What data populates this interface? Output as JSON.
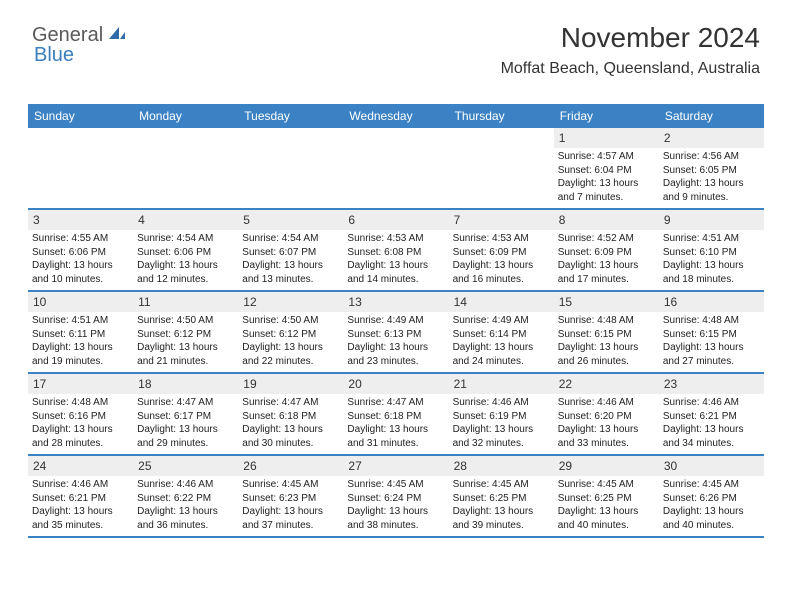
{
  "logo": {
    "text1": "General",
    "text2": "Blue"
  },
  "title": "November 2024",
  "location": "Moffat Beach, Queensland, Australia",
  "colors": {
    "header_bg": "#3b82c4",
    "header_text": "#ffffff",
    "daynum_bg": "#eeeeee",
    "border": "#3b82c4",
    "logo_gray": "#5a5a5a",
    "logo_blue": "#3b7fbf"
  },
  "day_headers": [
    "Sunday",
    "Monday",
    "Tuesday",
    "Wednesday",
    "Thursday",
    "Friday",
    "Saturday"
  ],
  "weeks": [
    [
      null,
      null,
      null,
      null,
      null,
      {
        "n": "1",
        "sr": "4:57 AM",
        "ss": "6:04 PM",
        "dh": 13,
        "dm": 7
      },
      {
        "n": "2",
        "sr": "4:56 AM",
        "ss": "6:05 PM",
        "dh": 13,
        "dm": 9
      }
    ],
    [
      {
        "n": "3",
        "sr": "4:55 AM",
        "ss": "6:06 PM",
        "dh": 13,
        "dm": 10
      },
      {
        "n": "4",
        "sr": "4:54 AM",
        "ss": "6:06 PM",
        "dh": 13,
        "dm": 12
      },
      {
        "n": "5",
        "sr": "4:54 AM",
        "ss": "6:07 PM",
        "dh": 13,
        "dm": 13
      },
      {
        "n": "6",
        "sr": "4:53 AM",
        "ss": "6:08 PM",
        "dh": 13,
        "dm": 14
      },
      {
        "n": "7",
        "sr": "4:53 AM",
        "ss": "6:09 PM",
        "dh": 13,
        "dm": 16
      },
      {
        "n": "8",
        "sr": "4:52 AM",
        "ss": "6:09 PM",
        "dh": 13,
        "dm": 17
      },
      {
        "n": "9",
        "sr": "4:51 AM",
        "ss": "6:10 PM",
        "dh": 13,
        "dm": 18
      }
    ],
    [
      {
        "n": "10",
        "sr": "4:51 AM",
        "ss": "6:11 PM",
        "dh": 13,
        "dm": 19
      },
      {
        "n": "11",
        "sr": "4:50 AM",
        "ss": "6:12 PM",
        "dh": 13,
        "dm": 21
      },
      {
        "n": "12",
        "sr": "4:50 AM",
        "ss": "6:12 PM",
        "dh": 13,
        "dm": 22
      },
      {
        "n": "13",
        "sr": "4:49 AM",
        "ss": "6:13 PM",
        "dh": 13,
        "dm": 23
      },
      {
        "n": "14",
        "sr": "4:49 AM",
        "ss": "6:14 PM",
        "dh": 13,
        "dm": 24
      },
      {
        "n": "15",
        "sr": "4:48 AM",
        "ss": "6:15 PM",
        "dh": 13,
        "dm": 26
      },
      {
        "n": "16",
        "sr": "4:48 AM",
        "ss": "6:15 PM",
        "dh": 13,
        "dm": 27
      }
    ],
    [
      {
        "n": "17",
        "sr": "4:48 AM",
        "ss": "6:16 PM",
        "dh": 13,
        "dm": 28
      },
      {
        "n": "18",
        "sr": "4:47 AM",
        "ss": "6:17 PM",
        "dh": 13,
        "dm": 29
      },
      {
        "n": "19",
        "sr": "4:47 AM",
        "ss": "6:18 PM",
        "dh": 13,
        "dm": 30
      },
      {
        "n": "20",
        "sr": "4:47 AM",
        "ss": "6:18 PM",
        "dh": 13,
        "dm": 31
      },
      {
        "n": "21",
        "sr": "4:46 AM",
        "ss": "6:19 PM",
        "dh": 13,
        "dm": 32
      },
      {
        "n": "22",
        "sr": "4:46 AM",
        "ss": "6:20 PM",
        "dh": 13,
        "dm": 33
      },
      {
        "n": "23",
        "sr": "4:46 AM",
        "ss": "6:21 PM",
        "dh": 13,
        "dm": 34
      }
    ],
    [
      {
        "n": "24",
        "sr": "4:46 AM",
        "ss": "6:21 PM",
        "dh": 13,
        "dm": 35
      },
      {
        "n": "25",
        "sr": "4:46 AM",
        "ss": "6:22 PM",
        "dh": 13,
        "dm": 36
      },
      {
        "n": "26",
        "sr": "4:45 AM",
        "ss": "6:23 PM",
        "dh": 13,
        "dm": 37
      },
      {
        "n": "27",
        "sr": "4:45 AM",
        "ss": "6:24 PM",
        "dh": 13,
        "dm": 38
      },
      {
        "n": "28",
        "sr": "4:45 AM",
        "ss": "6:25 PM",
        "dh": 13,
        "dm": 39
      },
      {
        "n": "29",
        "sr": "4:45 AM",
        "ss": "6:25 PM",
        "dh": 13,
        "dm": 40
      },
      {
        "n": "30",
        "sr": "4:45 AM",
        "ss": "6:26 PM",
        "dh": 13,
        "dm": 40
      }
    ]
  ],
  "labels": {
    "sunrise_prefix": "Sunrise: ",
    "sunset_prefix": "Sunset: ",
    "daylight_prefix": "Daylight: ",
    "hours_word": " hours",
    "and_word": "and ",
    "minutes_word": " minutes."
  }
}
